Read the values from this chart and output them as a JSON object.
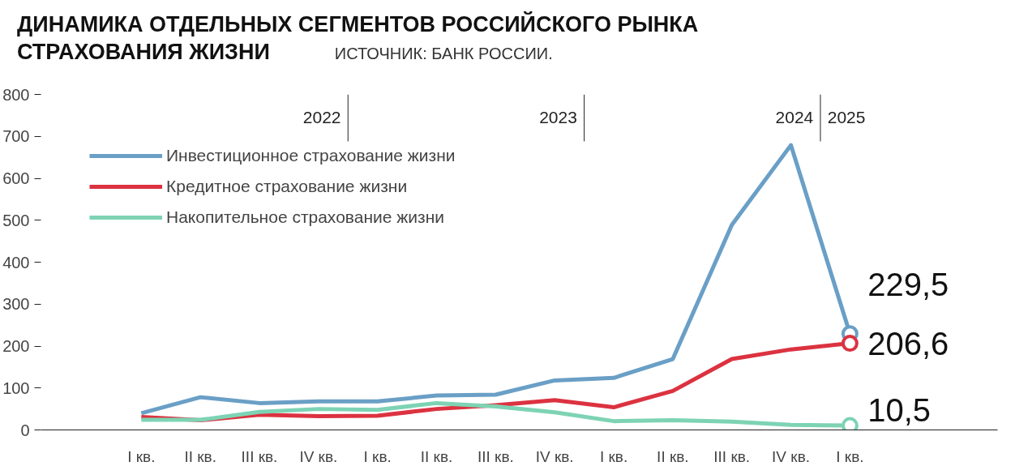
{
  "chart_data": {
    "type": "line",
    "title": "ДИНАМИКА ОТДЕЛЬНЫХ СЕГМЕНТОВ РОССИЙСКОГО РЫНКА\nСТРАХОВАНИЯ ЖИЗНИ",
    "annotations": [
      "ИСТОЧНИК: БАНК РОССИИ.",
      "2022",
      "2023",
      "2024",
      "2025"
    ],
    "categories": [
      "I кв.",
      "II кв.",
      "III кв.",
      "IV кв.",
      "I кв.",
      "II кв.",
      "III кв.",
      "IV кв.",
      "I кв.",
      "II кв.",
      "III кв.",
      "IV кв.",
      "I кв."
    ],
    "series": [
      {
        "name": "Инвестиционное страхование жизни",
        "color": "#6a9fc6",
        "values": [
          40,
          78,
          64,
          68,
          68,
          82,
          84,
          118,
          124,
          169,
          489,
          679,
          229.5
        ],
        "value_labels": [
          null,
          null,
          null,
          null,
          null,
          null,
          null,
          null,
          null,
          null,
          null,
          null,
          "229,5"
        ]
      },
      {
        "name": "Кредитное страхование жизни",
        "color": "#dc3240",
        "values": [
          31,
          23,
          36,
          33,
          34,
          50,
          59,
          71,
          54,
          93,
          169,
          192,
          206.6
        ],
        "value_labels": [
          null,
          null,
          null,
          null,
          null,
          null,
          null,
          null,
          null,
          null,
          null,
          null,
          "206,6"
        ]
      },
      {
        "name": "Накопительное страхование жизни",
        "color": "#7dd3b4",
        "values": [
          24,
          24,
          43,
          50,
          48,
          64,
          56,
          42,
          21,
          23,
          20,
          12,
          10.5
        ],
        "value_labels": [
          null,
          null,
          null,
          null,
          null,
          null,
          null,
          null,
          null,
          null,
          null,
          null,
          "10,5"
        ]
      }
    ],
    "ylim": [
      0,
      800
    ],
    "yticks": [
      0,
      100,
      200,
      300,
      400,
      500,
      600,
      700,
      800
    ],
    "legend": "top left"
  }
}
